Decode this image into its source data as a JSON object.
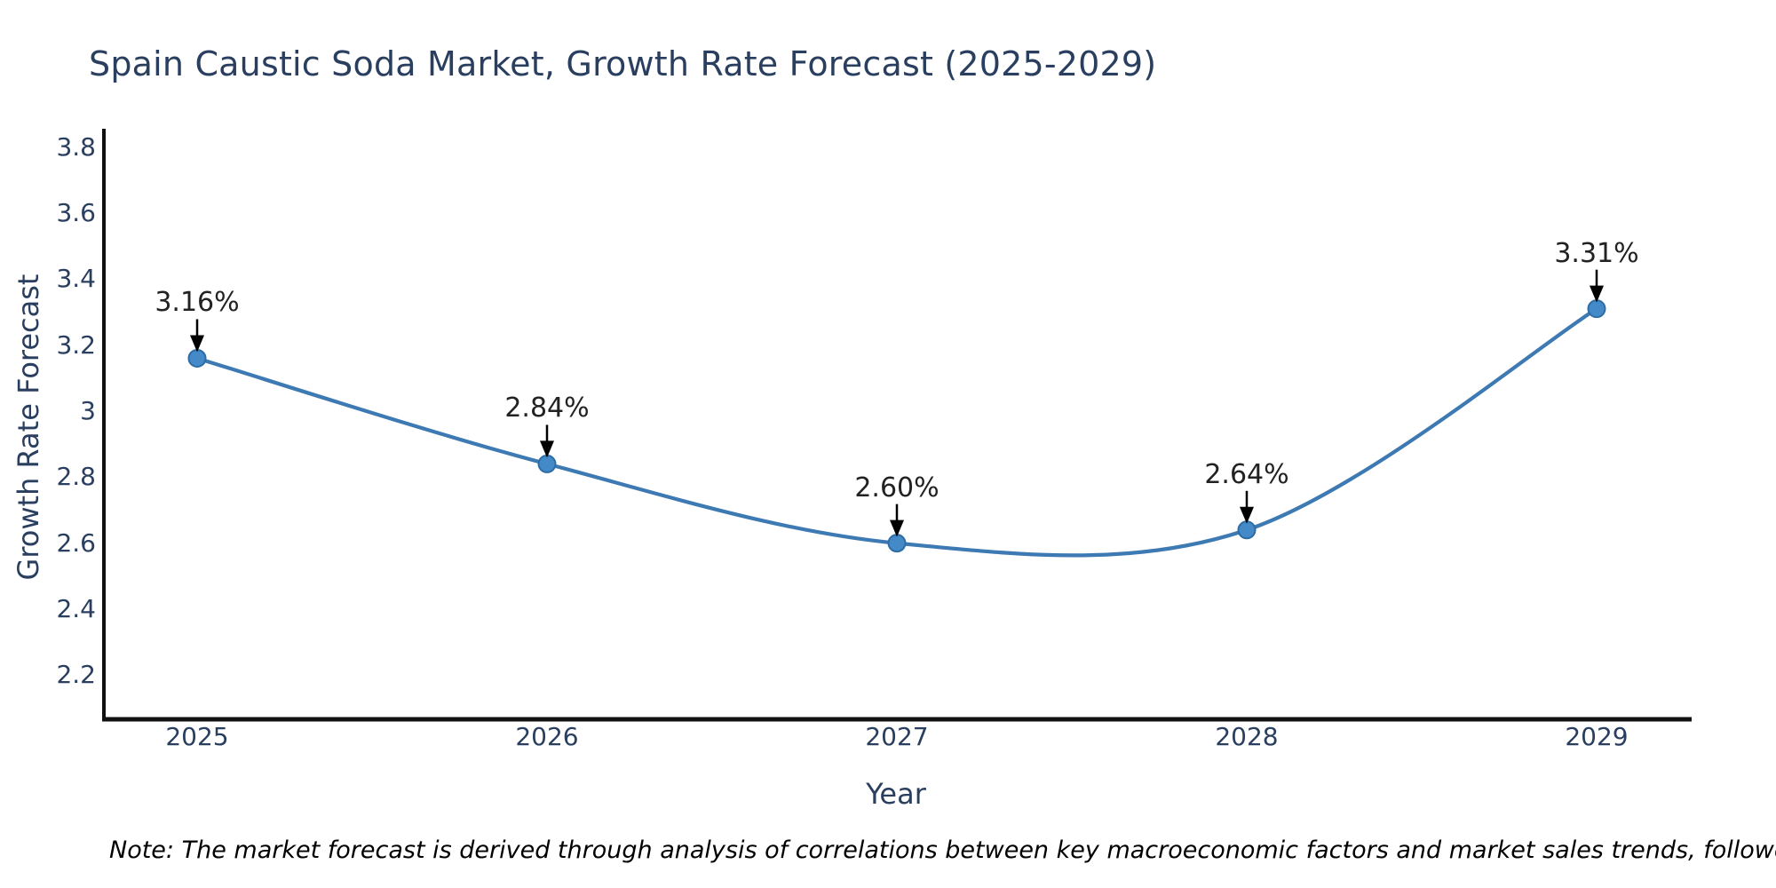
{
  "title": "Spain Caustic Soda Market, Growth Rate Forecast (2025-2029)",
  "note": "Note: The market forecast is derived through analysis of correlations between key macroeconomic factors and market sales trends, followed by predictive modeling to project future sales",
  "chart_data": {
    "type": "line",
    "title": "Spain Caustic Soda Market, Growth Rate Forecast (2025-2029)",
    "x": [
      2025,
      2026,
      2027,
      2028,
      2029
    ],
    "series": [
      {
        "name": "Growth Rate Forecast",
        "values": [
          3.16,
          2.84,
          2.6,
          2.64,
          3.31
        ]
      }
    ],
    "point_labels": [
      "3.16%",
      "2.84%",
      "2.60%",
      "2.64%",
      "3.31%"
    ],
    "xlabel": "Year",
    "ylabel": "Growth Rate Forecast",
    "yticks": [
      "3.8",
      "3.6",
      "3.4",
      "3.2",
      "3",
      "2.8",
      "2.6",
      "2.4",
      "2.2"
    ],
    "ylim": [
      2.07,
      3.86
    ],
    "grid": false,
    "legend": "none",
    "line_shape": "spline",
    "colors": {
      "line": "#3d79b2",
      "marker": "#4489c8",
      "marker_edge": "#2e6da4",
      "axis_line": "#111111",
      "axis_text": "#2a3f5f",
      "annotation_text": "#222222",
      "annotation_arrow": "#000000",
      "note_text": "#000000",
      "background": "#ffffff"
    }
  }
}
